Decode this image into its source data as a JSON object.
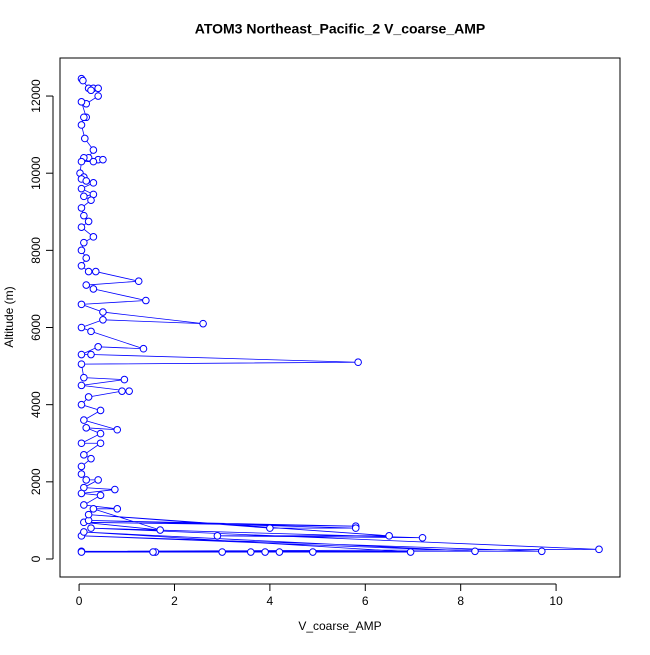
{
  "chart_data": {
    "type": "line",
    "title": "ATOM3 Northeast_Pacific_2 V_coarse_AMP",
    "x_label": "V_coarse_AMP",
    "y_label": "Altitude (m)",
    "color": "#0000ff",
    "markers": "open-circle",
    "x": [
      0.05,
      0.08,
      0.2,
      0.3,
      0.25,
      0.4,
      0.4,
      0.15,
      0.05,
      0.15,
      0.1,
      0.05,
      0.12,
      0.3,
      0.2,
      0.1,
      0.4,
      0.5,
      0.3,
      0.05,
      0.02,
      0.1,
      0.05,
      0.15,
      0.3,
      0.05,
      0.3,
      0.1,
      0.25,
      0.05,
      0.1,
      0.2,
      0.05,
      0.3,
      0.1,
      0.05,
      0.15,
      0.05,
      0.2,
      0.35,
      1.25,
      0.15,
      0.3,
      1.4,
      0.05,
      0.5,
      2.6,
      0.5,
      0.05,
      0.25,
      1.35,
      0.4,
      0.05,
      0.25,
      5.85,
      0.05,
      0.1,
      0.95,
      0.05,
      1.05,
      0.9,
      0.2,
      0.05,
      0.45,
      0.1,
      0.8,
      0.15,
      0.45,
      0.05,
      0.45,
      0.1,
      0.25,
      0.05,
      0.05,
      0.15,
      0.4,
      0.1,
      0.75,
      0.05,
      0.45,
      0.1,
      0.8,
      0.3,
      1.7,
      0.1,
      5.8,
      0.2,
      5.8,
      4.0,
      0.2,
      6.5,
      2.9,
      7.2,
      0.25,
      10.9,
      0.05,
      9.7,
      0.05,
      8.3,
      0.1,
      6.95,
      4.9,
      4.2,
      3.9,
      3.6,
      3.0,
      1.6,
      1.55,
      0.05
    ],
    "values": [
      12450,
      12400,
      12200,
      12200,
      12150,
      12200,
      12000,
      11800,
      11850,
      11450,
      11450,
      11250,
      10900,
      10600,
      10400,
      10400,
      10350,
      10350,
      10300,
      10300,
      10000,
      9900,
      9850,
      9800,
      9750,
      9600,
      9450,
      9400,
      9300,
      9100,
      8900,
      8750,
      8600,
      8350,
      8200,
      8000,
      7800,
      7600,
      7450,
      7450,
      7200,
      7100,
      7000,
      6700,
      6600,
      6400,
      6100,
      6200,
      6000,
      5900,
      5450,
      5500,
      5300,
      5300,
      5100,
      5050,
      4700,
      4650,
      4500,
      4350,
      4350,
      4200,
      4000,
      3850,
      3600,
      3350,
      3400,
      3250,
      3000,
      3000,
      2700,
      2600,
      2400,
      2200,
      2050,
      2050,
      1850,
      1800,
      1700,
      1650,
      1400,
      1300,
      1300,
      750,
      950,
      850,
      1000,
      800,
      800,
      1150,
      600,
      600,
      550,
      800,
      250,
      200,
      200,
      600,
      200,
      700,
      180,
      180,
      180,
      180,
      180,
      180,
      180,
      180,
      180
    ],
    "xlim": [
      -0.4,
      11.34
    ],
    "ylim": [
      -467,
      12986
    ],
    "xticks": [
      0,
      2,
      4,
      6,
      8,
      10
    ],
    "yticks": [
      0,
      2000,
      4000,
      6000,
      8000,
      10000,
      12000
    ]
  }
}
